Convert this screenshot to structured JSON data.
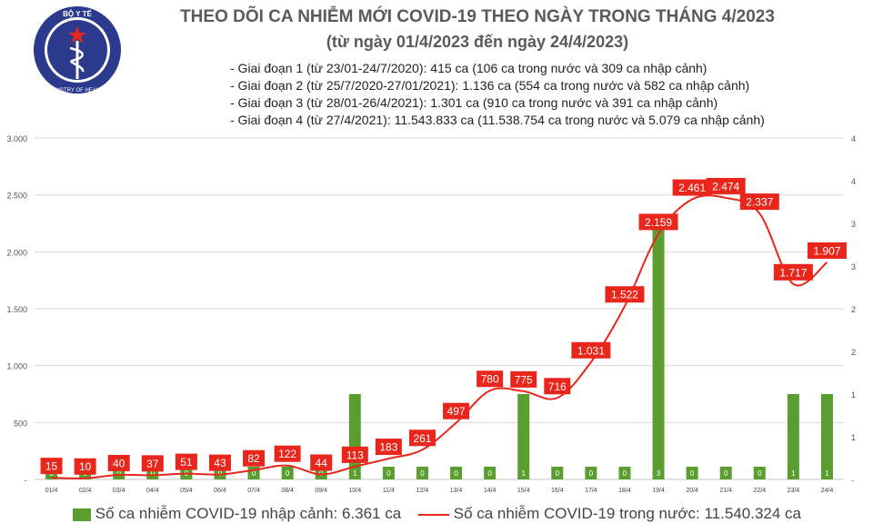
{
  "header": {
    "logo_text_top": "BỘ Y TẾ",
    "logo_text_bottom": "MINISTRY OF HEALTH",
    "title": "THEO DÕI CA NHIỄM MỚI COVID-19 THEO NGÀY TRONG THÁNG 4/2023",
    "subtitle": "(từ ngày 01/4/2023 đến ngày 24/4/2023)",
    "notes": [
      "- Giai đoạn 1 (từ 23/01-24/7/2020): 415 ca (106 ca trong nước và 309 ca nhập cảnh)",
      "- Giai đoạn 2 (từ 25/7/2020-27/01/2021): 1.136 ca (554 ca trong nước và 582 ca nhập cảnh)",
      "- Giai đoạn 3 (từ 28/01-26/4/2021): 1.301 ca (910 ca trong nước và 391 ca nhập cảnh)",
      "- Giai đoạn 4 (từ 27/4/2021): 11.543.833 ca (11.538.754 ca trong nước và 5.079 ca nhập cảnh)"
    ]
  },
  "colors": {
    "bar": "#5a9e2f",
    "line": "#e8261c",
    "title": "#5a5a5a",
    "grid": "#d9d9d9"
  },
  "chart_data": {
    "type": "bar+line",
    "categories": [
      "01/4",
      "02/4",
      "03/4",
      "04/4",
      "05/4",
      "06/4",
      "07/4",
      "08/4",
      "09/4",
      "10/4",
      "11/4",
      "12/4",
      "13/4",
      "14/4",
      "15/4",
      "16/4",
      "17/4",
      "18/4",
      "19/4",
      "20/4",
      "21/4",
      "22/4",
      "23/4",
      "24/4"
    ],
    "series": [
      {
        "name": "Số ca nhiễm COVID-19 nhập cảnh: 6.361 ca",
        "type": "bar",
        "axis": "right",
        "values": [
          0,
          0,
          0,
          0,
          0,
          0,
          0,
          0,
          0,
          1,
          0,
          0,
          0,
          0,
          1,
          0,
          0,
          0,
          3,
          0,
          0,
          0,
          1,
          1
        ],
        "labels": [
          "0",
          "0",
          "0",
          "0",
          "0",
          "0",
          "0",
          "0",
          "0",
          "1",
          "0",
          "0",
          "0",
          "0",
          "1",
          "0",
          "0",
          "0",
          "3",
          "0",
          "0",
          "0",
          "1",
          "1"
        ]
      },
      {
        "name": "Số ca nhiễm COVID-19 trong nước: 11.540.324 ca",
        "type": "line",
        "axis": "left",
        "values": [
          15,
          10,
          40,
          37,
          51,
          43,
          82,
          122,
          44,
          113,
          183,
          261,
          497,
          780,
          775,
          716,
          1031,
          1522,
          2159,
          2461,
          2474,
          2337,
          1717,
          1907
        ],
        "labels": [
          "15",
          "10",
          "40",
          "37",
          "51",
          "43",
          "82",
          "122",
          "44",
          "113",
          "183",
          "261",
          "497",
          "780",
          "775",
          "716",
          "1.031",
          "1.522",
          "2.159",
          "2.461",
          "2.474",
          "2.337",
          "1.717",
          "1.907"
        ]
      }
    ],
    "y_left": {
      "range": [
        0,
        3000
      ],
      "ticks": [
        0,
        500,
        1000,
        1500,
        2000,
        2500,
        3000
      ],
      "tick_labels": [
        "-",
        "500",
        "1.000",
        "1.500",
        "2.000",
        "2.500",
        "3.000"
      ]
    },
    "y_right": {
      "range": [
        0,
        4
      ],
      "ticks": [
        0,
        0.5,
        1,
        1.5,
        2,
        2.5,
        3,
        3.5,
        4
      ],
      "tick_labels": [
        "-",
        "1",
        "1",
        "2",
        "2",
        "3",
        "3",
        "4",
        "4"
      ]
    },
    "grid": true,
    "legend": "bottom"
  }
}
